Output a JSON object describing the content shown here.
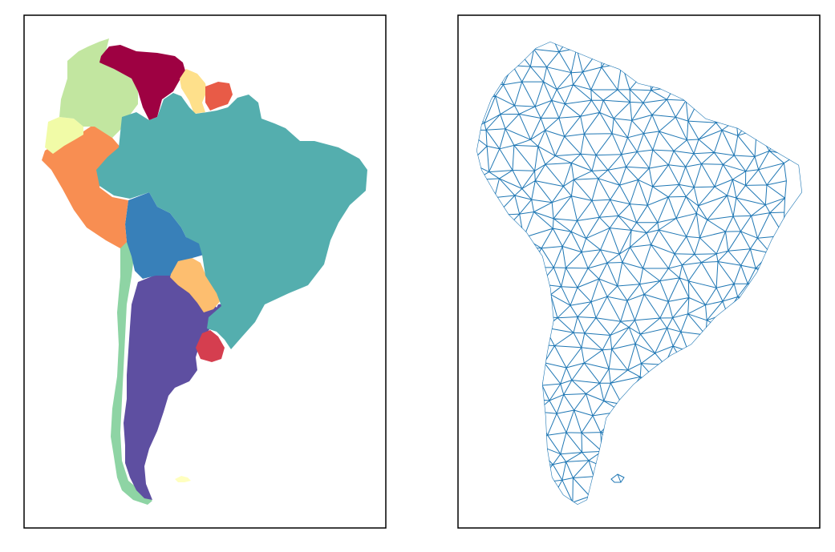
{
  "figure": {
    "panels": [
      {
        "id": "choropleth",
        "kind": "country-fill map",
        "frame_color": "#000000"
      },
      {
        "id": "mesh",
        "kind": "triangulated mesh",
        "frame_color": "#000000",
        "mesh_color": "#1f77b4"
      }
    ],
    "regions": [
      {
        "id": "colombia",
        "color": "#c2e6a0"
      },
      {
        "id": "venezuela",
        "color": "#9e0142"
      },
      {
        "id": "guyana",
        "color": "#fee08b"
      },
      {
        "id": "suriname",
        "color": "#e85b47"
      },
      {
        "id": "ecuador",
        "color": "#f1fba7"
      },
      {
        "id": "peru",
        "color": "#f88e52"
      },
      {
        "id": "brazil",
        "color": "#54aeae"
      },
      {
        "id": "bolivia",
        "color": "#3880b9"
      },
      {
        "id": "paraguay",
        "color": "#fdbe6f"
      },
      {
        "id": "chile",
        "color": "#8ed4a4"
      },
      {
        "id": "argentina",
        "color": "#5e4fa1"
      },
      {
        "id": "uruguay",
        "color": "#d53e4f"
      },
      {
        "id": "falklands",
        "color": "#ffffbf"
      }
    ]
  }
}
